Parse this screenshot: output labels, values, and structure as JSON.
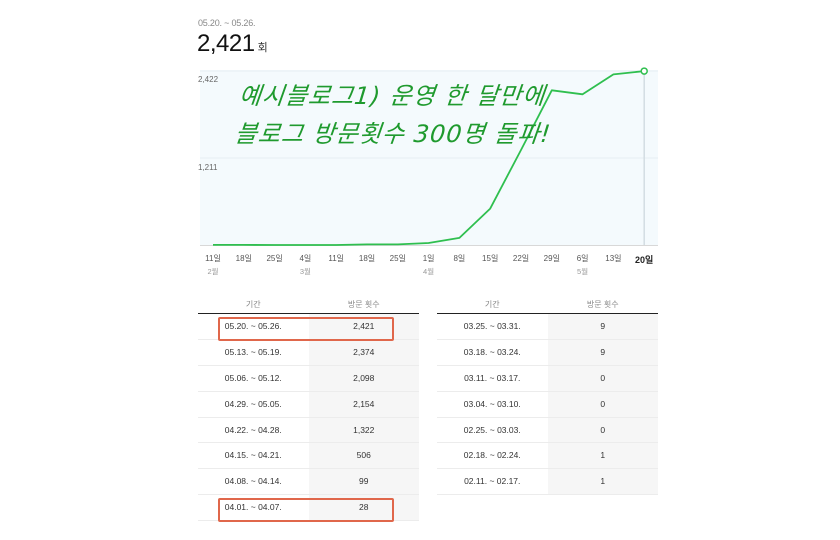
{
  "summary": {
    "range": "05.20. ~ 05.26.",
    "value": "2,421",
    "unit": "회"
  },
  "annotation": {
    "line1": "예시블로그1) 운영 한 달만에",
    "line2": "블로그 방문횟수 300명 돌파!",
    "color": "#1f9a2e"
  },
  "chart_data": {
    "type": "line",
    "title": "",
    "xlabel": "",
    "ylabel": "방문 횟수",
    "ylim": [
      0,
      2422
    ],
    "y_ticks": [
      "2,422",
      "1,211"
    ],
    "grid": true,
    "legend": "none",
    "line_color": "#2fbf4f",
    "x": [
      "11일",
      "18일",
      "25일",
      "4일",
      "11일",
      "18일",
      "25일",
      "1일",
      "8일",
      "15일",
      "22일",
      "29일",
      "6일",
      "13일",
      "20일"
    ],
    "month_labels": [
      {
        "at_index": 0,
        "label": "2월"
      },
      {
        "at_index": 3,
        "label": "3월"
      },
      {
        "at_index": 7,
        "label": "4월"
      },
      {
        "at_index": 12,
        "label": "5월"
      }
    ],
    "series": [
      {
        "name": "방문 횟수",
        "values": [
          1,
          1,
          0,
          0,
          0,
          9,
          9,
          28,
          99,
          506,
          1322,
          2154,
          2098,
          2374,
          2421
        ]
      }
    ],
    "highlighted_point_index": 14
  },
  "tables": {
    "headers": [
      "기간",
      "방문 횟수"
    ],
    "left": [
      {
        "period": "05.20. ~ 05.26.",
        "count": "2,421",
        "highlight": true
      },
      {
        "period": "05.13. ~ 05.19.",
        "count": "2,374"
      },
      {
        "period": "05.06. ~ 05.12.",
        "count": "2,098"
      },
      {
        "period": "04.29. ~ 05.05.",
        "count": "2,154"
      },
      {
        "period": "04.22. ~ 04.28.",
        "count": "1,322"
      },
      {
        "period": "04.15. ~ 04.21.",
        "count": "506"
      },
      {
        "period": "04.08. ~ 04.14.",
        "count": "99"
      },
      {
        "period": "04.01. ~ 04.07.",
        "count": "28",
        "highlight": true
      }
    ],
    "right": [
      {
        "period": "03.25. ~ 03.31.",
        "count": "9"
      },
      {
        "period": "03.18. ~ 03.24.",
        "count": "9"
      },
      {
        "period": "03.11. ~ 03.17.",
        "count": "0"
      },
      {
        "period": "03.04. ~ 03.10.",
        "count": "0"
      },
      {
        "period": "02.25. ~ 03.03.",
        "count": "0"
      },
      {
        "period": "02.18. ~ 02.24.",
        "count": "1"
      },
      {
        "period": "02.11. ~ 02.17.",
        "count": "1"
      }
    ],
    "highlight_color": "#e0674b"
  }
}
